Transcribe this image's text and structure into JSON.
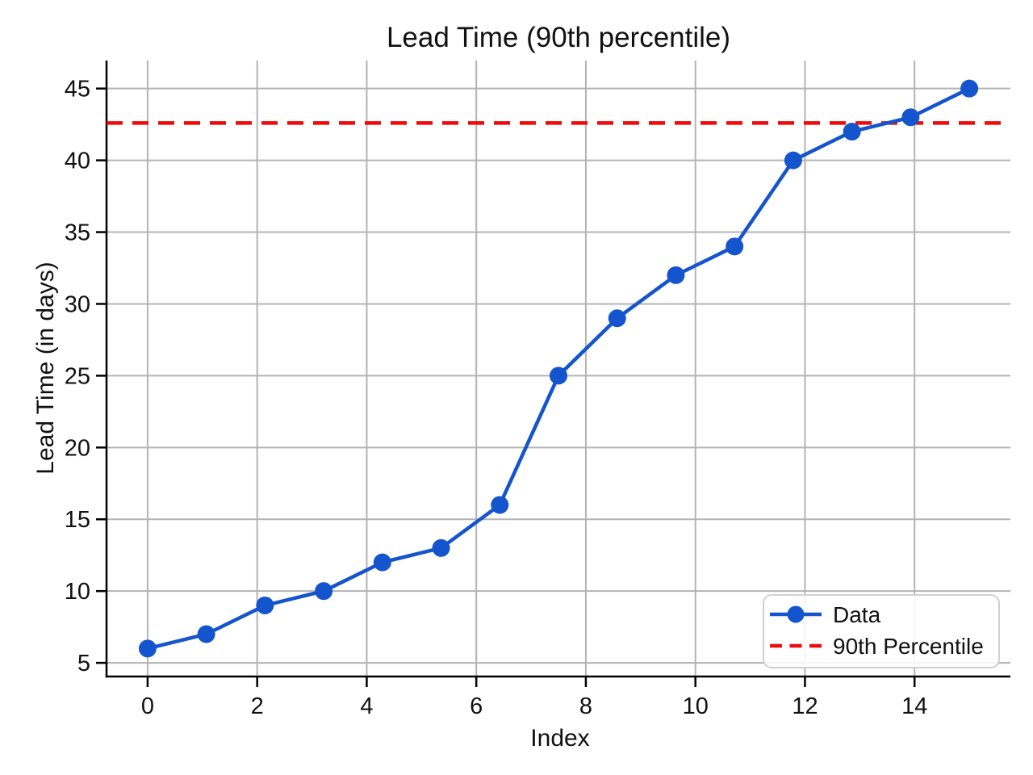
{
  "chart_data": {
    "type": "line",
    "title": "Lead Time (90th percentile)",
    "xlabel": "Index",
    "ylabel": "Lead Time (in days)",
    "x": [
      0,
      1.0714,
      2.1429,
      3.2143,
      4.2857,
      5.3571,
      6.4286,
      7.5,
      8.5714,
      9.6429,
      10.7143,
      11.7857,
      12.8571,
      13.9286,
      15
    ],
    "series": [
      {
        "name": "Data",
        "values": [
          6,
          7,
          9,
          10,
          12,
          13,
          16,
          25,
          29,
          32,
          34,
          40,
          42,
          43,
          45
        ],
        "color": "#1455cd",
        "marker": "circle",
        "line_style": "solid"
      }
    ],
    "reference_lines": [
      {
        "name": "90th Percentile",
        "value": 42.6,
        "color": "#f00a0a",
        "line_style": "dashed"
      }
    ],
    "xticks": [
      0,
      2,
      4,
      6,
      8,
      10,
      12,
      14
    ],
    "yticks": [
      5,
      10,
      15,
      20,
      25,
      30,
      35,
      40,
      45
    ],
    "xlim": [
      -0.75,
      15.75
    ],
    "ylim": [
      4.05,
      46.95
    ],
    "grid": true,
    "grid_color": "#b3b3b3",
    "spine_color": "#000000",
    "legend": {
      "position": "lower right",
      "entries": [
        "Data",
        "90th Percentile"
      ]
    }
  }
}
